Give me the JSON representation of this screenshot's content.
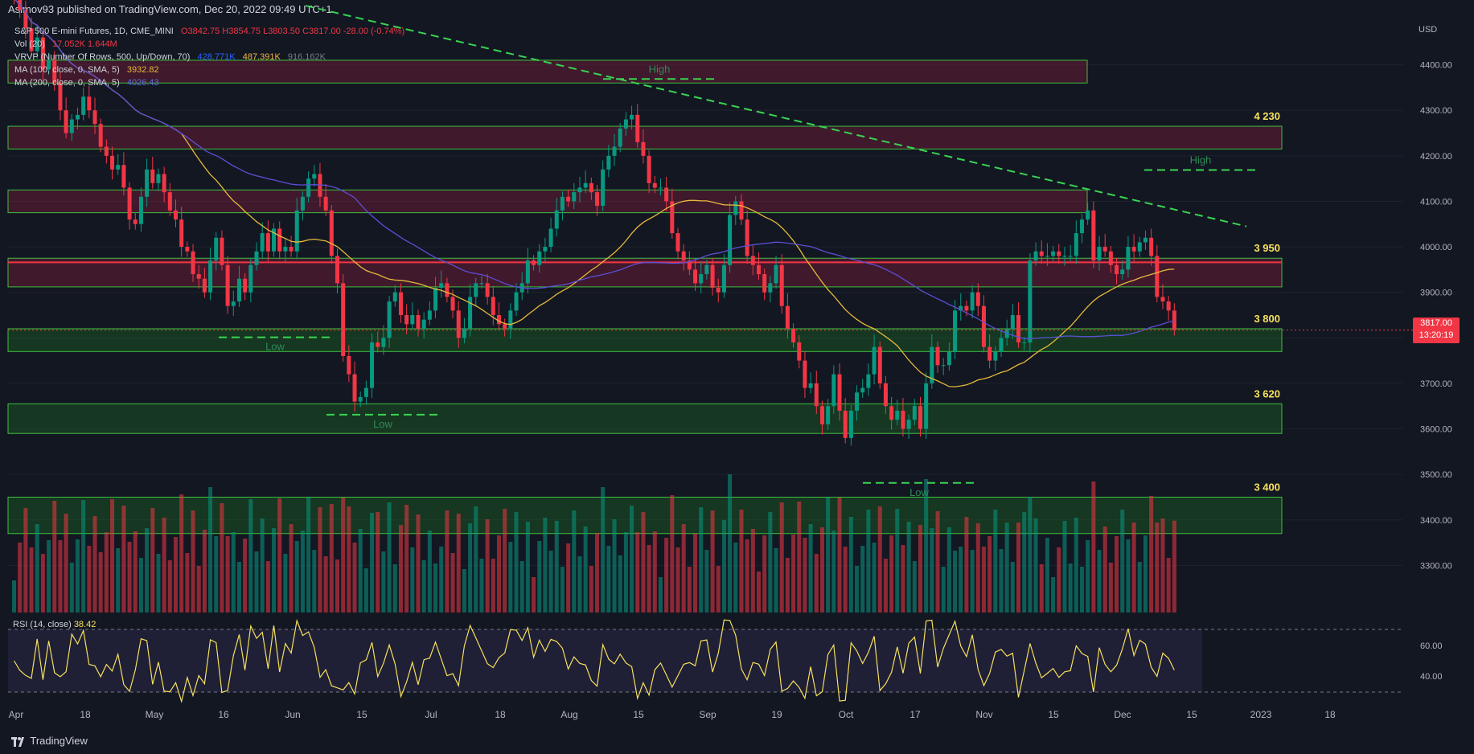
{
  "header": {
    "publisher_line": "Asimov93 published on TradingView.com, Dec 20, 2022 09:49 UTC+1"
  },
  "legend": {
    "symbol": "S&P 500 E-mini Futures, 1D, CME_MINI",
    "ohlc": "O3842.75 H3854.75 L3803.50 C3817.00 -28.00 (-0.74%)",
    "vol_label": "Vol (20)",
    "vol_values": "17.052K  1.644M",
    "vrvp_label": "VRVP (Number Of Rows, 500, Up/Down, 70)",
    "vrvp_up": "428.771K",
    "vrvp_down": "487.391K",
    "vrvp_total": "916.162K",
    "ma100_label": "MA (100, close, 0, SMA, 5)",
    "ma100_value": "3932.82",
    "ma200_label": "MA (200, close, 0, SMA, 5)",
    "ma200_value": "4026.43"
  },
  "price_scale": {
    "currency": "USD",
    "current_price": "3817.00",
    "countdown": "13:20:19"
  },
  "rsi": {
    "label": "RSI (14, close)",
    "value": "38.42",
    "ticks": [
      "60.00",
      "40.00"
    ]
  },
  "footer": {
    "brand": "TradingView"
  },
  "colors": {
    "background": "#131722",
    "up_candle": "#089981",
    "down_candle": "#f23645",
    "ma100": "#e6b93a",
    "ma200": "#5b4fd6",
    "zone_green": "#1b5e20",
    "zone_red": "#5e1a2b",
    "annotation_yellow": "#f6e05e",
    "dashed_green": "#39d353"
  },
  "chart_data": {
    "type": "candlestick",
    "title": "S&P 500 E-mini Futures, 1D, CME_MINI",
    "x_ticks": [
      "Apr",
      "18",
      "May",
      "16",
      "Jun",
      "15",
      "Jul",
      "18",
      "Aug",
      "15",
      "Sep",
      "19",
      "Oct",
      "17",
      "Nov",
      "15",
      "Dec",
      "15",
      "2023",
      "18"
    ],
    "y_ticks": [
      "4400.00",
      "4300.00",
      "4200.00",
      "4100.00",
      "4000.00",
      "3900.00",
      "3800.00",
      "3700.00",
      "3600.00",
      "3500.00",
      "3400.00",
      "3300.00"
    ],
    "y_range": [
      3200,
      4500
    ],
    "levels": [
      {
        "label": "4 230",
        "low": 4215,
        "high": 4265,
        "kind": "resistance"
      },
      {
        "label": "3 950",
        "low": 3912,
        "high": 3975,
        "kind": "resistance"
      },
      {
        "label": "3 800",
        "low": 3770,
        "high": 3820,
        "kind": "support"
      },
      {
        "label": "3 620",
        "low": 3590,
        "high": 3655,
        "kind": "support"
      },
      {
        "label": "3 400",
        "low": 3370,
        "high": 3450,
        "kind": "support"
      },
      {
        "label": "",
        "low": 4360,
        "high": 4410,
        "kind": "resistance"
      },
      {
        "label": "",
        "low": 4075,
        "high": 4125,
        "kind": "resistance"
      }
    ],
    "annotations": [
      "High",
      "High",
      "Low",
      "Low",
      "Low"
    ],
    "closes": [
      4545,
      4520,
      4480,
      4430,
      4460,
      4390,
      4410,
      4360,
      4300,
      4250,
      4280,
      4290,
      4330,
      4300,
      4270,
      4220,
      4200,
      4170,
      4180,
      4130,
      4060,
      4050,
      4110,
      4170,
      4140,
      4160,
      4120,
      4080,
      4060,
      4000,
      3990,
      3940,
      3930,
      3900,
      3970,
      4020,
      3960,
      3870,
      3880,
      3930,
      3900,
      3960,
      3990,
      4030,
      3990,
      4040,
      3990,
      4000,
      3990,
      4080,
      4110,
      4150,
      4160,
      4110,
      4080,
      3980,
      3920,
      3760,
      3720,
      3660,
      3670,
      3690,
      3790,
      3780,
      3800,
      3880,
      3900,
      3850,
      3830,
      3850,
      3820,
      3840,
      3860,
      3910,
      3920,
      3890,
      3860,
      3800,
      3820,
      3890,
      3920,
      3920,
      3890,
      3850,
      3830,
      3820,
      3860,
      3900,
      3920,
      3970,
      3960,
      3990,
      4000,
      4040,
      4080,
      4110,
      4100,
      4120,
      4130,
      4140,
      4120,
      4090,
      4170,
      4200,
      4220,
      4260,
      4280,
      4290,
      4230,
      4200,
      4140,
      4130,
      4130,
      4100,
      4030,
      3990,
      3970,
      3950,
      3920,
      3940,
      3960,
      3910,
      3900,
      3960,
      4070,
      4100,
      4060,
      3980,
      3960,
      3940,
      3900,
      3920,
      3960,
      3870,
      3820,
      3790,
      3750,
      3690,
      3700,
      3650,
      3610,
      3650,
      3720,
      3640,
      3580,
      3640,
      3680,
      3690,
      3720,
      3780,
      3700,
      3650,
      3620,
      3640,
      3600,
      3620,
      3650,
      3600,
      3700,
      3780,
      3740,
      3740,
      3770,
      3860,
      3870,
      3860,
      3900,
      3870,
      3780,
      3750,
      3770,
      3800,
      3820,
      3850,
      3790,
      3790,
      3970,
      3990,
      3980,
      3980,
      3990,
      3980,
      3980,
      3980,
      4030,
      4060,
      4080,
      3970,
      4000,
      3990,
      3960,
      3940,
      3950,
      4000,
      3990,
      4010,
      4020,
      3980,
      3890,
      3880,
      3860,
      3817
    ],
    "volume_ma": "Vol (20)"
  }
}
